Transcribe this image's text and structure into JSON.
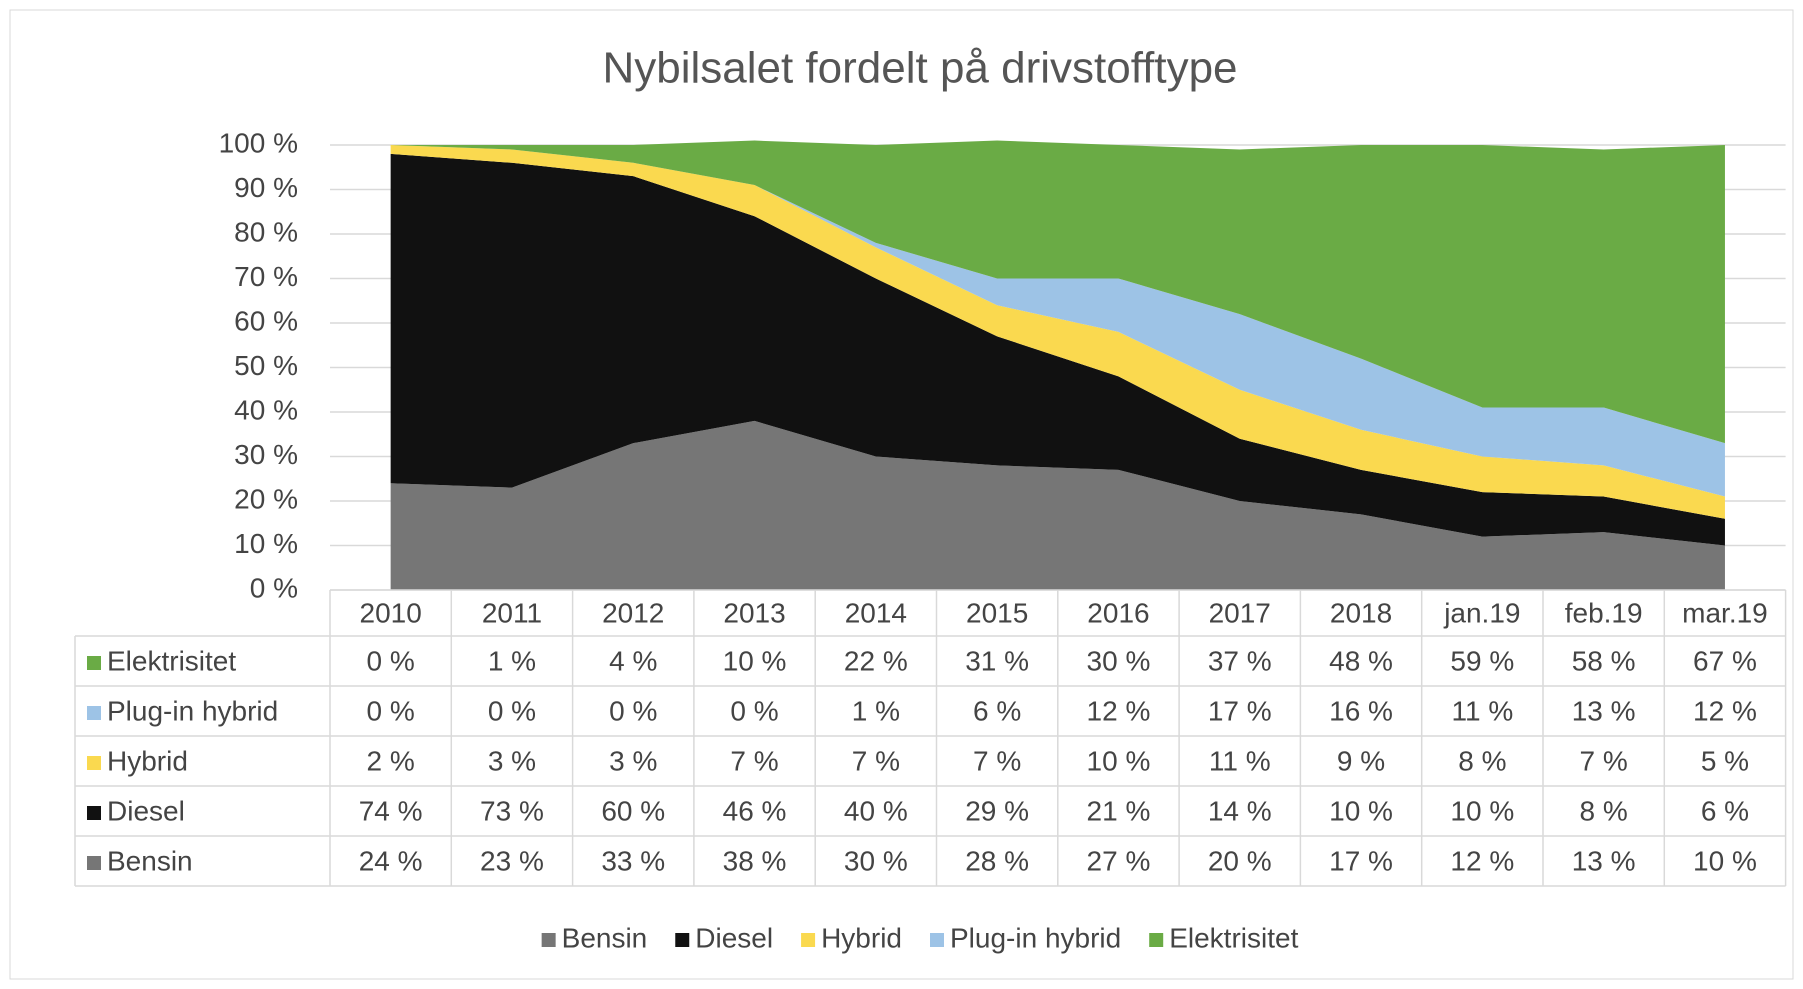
{
  "chart_data": {
    "type": "area",
    "stacked": true,
    "title": "Nybilsalet fordelt på drivstofftype",
    "categories": [
      "2010",
      "2011",
      "2012",
      "2013",
      "2014",
      "2015",
      "2016",
      "2017",
      "2018",
      "jan.19",
      "feb.19",
      "mar.19"
    ],
    "series": [
      {
        "name": "Bensin",
        "color": "#767676",
        "values": [
          24,
          23,
          33,
          38,
          30,
          28,
          27,
          20,
          17,
          12,
          13,
          10
        ],
        "value_labels": [
          "24 %",
          "23 %",
          "33 %",
          "38 %",
          "30 %",
          "28 %",
          "27 %",
          "20 %",
          "17 %",
          "12 %",
          "13 %",
          "10 %"
        ]
      },
      {
        "name": "Diesel",
        "color": "#111111",
        "values": [
          74,
          73,
          60,
          46,
          40,
          29,
          21,
          14,
          10,
          10,
          8,
          6
        ],
        "value_labels": [
          "74 %",
          "73 %",
          "60 %",
          "46 %",
          "40 %",
          "29 %",
          "21 %",
          "14 %",
          "10 %",
          "10 %",
          "8 %",
          "6 %"
        ]
      },
      {
        "name": "Hybrid",
        "color": "#fad94f",
        "values": [
          2,
          3,
          3,
          7,
          7,
          7,
          10,
          11,
          9,
          8,
          7,
          5
        ],
        "value_labels": [
          "2 %",
          "3 %",
          "3 %",
          "7 %",
          "7 %",
          "7 %",
          "10 %",
          "11 %",
          "9 %",
          "8 %",
          "7 %",
          "5 %"
        ]
      },
      {
        "name": "Plug-in hybrid",
        "color": "#9dc3e6",
        "values": [
          0,
          0,
          0,
          0,
          1,
          6,
          12,
          17,
          16,
          11,
          13,
          12
        ],
        "value_labels": [
          "0 %",
          "0 %",
          "0 %",
          "0 %",
          "1 %",
          "6 %",
          "12 %",
          "17 %",
          "16 %",
          "11 %",
          "13 %",
          "12 %"
        ]
      },
      {
        "name": "Elektrisitet",
        "color": "#6aab45",
        "values": [
          0,
          1,
          4,
          10,
          22,
          31,
          30,
          37,
          48,
          59,
          58,
          67
        ],
        "value_labels": [
          "0 %",
          "1 %",
          "4 %",
          "10 %",
          "22 %",
          "31 %",
          "30 %",
          "37 %",
          "48 %",
          "59 %",
          "58 %",
          "67 %"
        ]
      }
    ],
    "ylim": [
      0,
      100
    ],
    "yticks": [
      {
        "value": 0,
        "label": "0 %"
      },
      {
        "value": 10,
        "label": "10 %"
      },
      {
        "value": 20,
        "label": "20 %"
      },
      {
        "value": 30,
        "label": "30 %"
      },
      {
        "value": 40,
        "label": "40 %"
      },
      {
        "value": 50,
        "label": "50 %"
      },
      {
        "value": 60,
        "label": "60 %"
      },
      {
        "value": 70,
        "label": "70 %"
      },
      {
        "value": 80,
        "label": "80 %"
      },
      {
        "value": 90,
        "label": "90 %"
      },
      {
        "value": 100,
        "label": "100 %"
      }
    ],
    "grid": true,
    "legend": "bottom",
    "data_table": true
  }
}
